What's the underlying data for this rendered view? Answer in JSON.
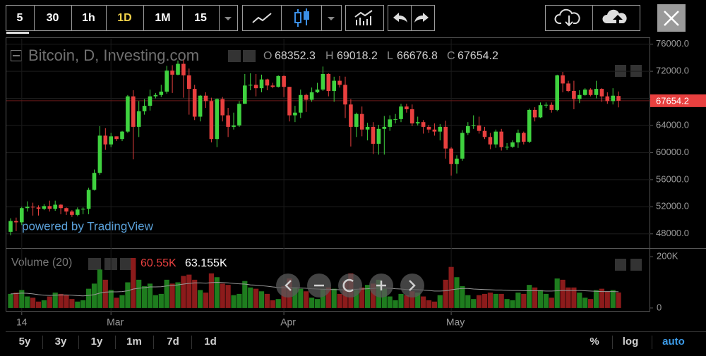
{
  "toolbar": {
    "intervals": [
      "5",
      "30",
      "1h",
      "1D",
      "1M",
      "15"
    ]
  },
  "chart_data": {
    "type": "candlestick",
    "title": "Bitcoin, D, Investing.com",
    "watermark": "powered by TradingView",
    "ohlc_labels": [
      "O",
      "H",
      "L",
      "C"
    ],
    "up_color": "#3fd23f",
    "down_color": "#e8403f",
    "categories": [
      null,
      null,
      "14",
      null,
      null,
      null,
      null,
      null,
      null,
      null,
      null,
      null,
      null,
      null,
      null,
      null,
      null,
      null,
      "Mar",
      null,
      null,
      null,
      null,
      null,
      null,
      null,
      null,
      null,
      null,
      null,
      null,
      null,
      null,
      null,
      null,
      null,
      null,
      null,
      null,
      null,
      null,
      null,
      null,
      null,
      null,
      null,
      null,
      null,
      null,
      "Apr",
      null,
      null,
      null,
      null,
      null,
      null,
      null,
      null,
      null,
      null,
      null,
      null,
      null,
      null,
      null,
      null,
      null,
      null,
      null,
      null,
      null,
      null,
      null,
      null,
      null,
      null,
      null,
      null,
      null,
      "May",
      null,
      null,
      null,
      null,
      null,
      null,
      null,
      null,
      null,
      null,
      null,
      null,
      null,
      null,
      null,
      null,
      null,
      null,
      null,
      null,
      null,
      null,
      null,
      null,
      null,
      null,
      null,
      null,
      null,
      null
    ],
    "open": [
      48300,
      49900,
      49700,
      51800,
      52000,
      51900,
      51700,
      52100,
      51700,
      52300,
      51800,
      51300,
      50800,
      51600,
      51700,
      54500,
      57000,
      62500,
      61200,
      62400,
      62000,
      63100,
      68300,
      63800,
      66100,
      66900,
      68300,
      68500,
      69000,
      72100,
      71500,
      73100,
      71400,
      69400,
      65300,
      68400,
      67600,
      62000,
      67900,
      65500,
      63800,
      64000,
      67200,
      69900,
      70000,
      69500,
      70800,
      69900,
      69700,
      71300,
      69700,
      65500,
      65900,
      68500,
      67800,
      68900,
      69300,
      71600,
      69100,
      70600,
      70000,
      67100,
      63800,
      65700,
      63400,
      63800,
      61300,
      63500,
      63800,
      64900,
      64950,
      66800,
      66400,
      64300,
      64500,
      63800,
      63400,
      63100,
      63800,
      60600,
      58300,
      59100,
      62900,
      63900,
      64000,
      63200,
      62300,
      61200,
      63100,
      60800,
      60850,
      61500,
      62900,
      61600,
      66300,
      65200,
      67000,
      67050,
      66300,
      71400,
      70200,
      69100,
      67900,
      68500,
      69300,
      68500,
      69400,
      68300,
      67600,
      68352.3
    ],
    "high": [
      50300,
      50400,
      52000,
      52800,
      52600,
      52200,
      52400,
      52900,
      52900,
      52400,
      51900,
      51500,
      51900,
      51900,
      54800,
      57500,
      63900,
      63600,
      62900,
      62400,
      63200,
      68500,
      69200,
      67600,
      67900,
      69300,
      68800,
      70000,
      72800,
      72900,
      73600,
      73700,
      72400,
      70000,
      68500,
      68900,
      68100,
      68000,
      68200,
      66600,
      65900,
      67600,
      71600,
      71700,
      71600,
      71500,
      70900,
      70300,
      71400,
      71400,
      69700,
      66900,
      69300,
      68700,
      69600,
      70300,
      72700,
      71700,
      71200,
      71300,
      71200,
      67900,
      65900,
      66800,
      64400,
      64500,
      64100,
      65400,
      65500,
      65700,
      67200,
      67200,
      67100,
      65300,
      64800,
      64100,
      64300,
      64200,
      64700,
      60800,
      59600,
      63300,
      64500,
      65500,
      65300,
      63800,
      62900,
      63400,
      63500,
      61400,
      61800,
      63400,
      63100,
      66500,
      66700,
      67400,
      67400,
      67400,
      71500,
      71900,
      70600,
      70600,
      69200,
      69500,
      69500,
      70600,
      69500,
      68900,
      69500,
      69018.2
    ],
    "low": [
      47800,
      48400,
      49300,
      51300,
      50700,
      50700,
      51500,
      51300,
      51400,
      50900,
      50800,
      50500,
      50600,
      50900,
      50900,
      54400,
      56700,
      60400,
      60800,
      61700,
      61700,
      62900,
      59000,
      62300,
      65600,
      66200,
      68000,
      68200,
      68700,
      68800,
      71400,
      68100,
      65600,
      64800,
      64600,
      66600,
      61500,
      60800,
      64600,
      62300,
      63400,
      63800,
      67200,
      69200,
      68300,
      68900,
      69200,
      69500,
      69600,
      68200,
      64600,
      64500,
      65100,
      66000,
      67500,
      68800,
      69100,
      68300,
      67500,
      69600,
      65100,
      60900,
      62300,
      62400,
      61800,
      59800,
      59700,
      59700,
      63200,
      64300,
      64500,
      65900,
      63900,
      64000,
      62800,
      62900,
      62500,
      61800,
      59100,
      56600,
      56900,
      58800,
      62600,
      63500,
      62800,
      62000,
      60500,
      60700,
      60300,
      60400,
      60700,
      60700,
      61200,
      61400,
      64600,
      65100,
      66600,
      65900,
      66100,
      68900,
      68900,
      66400,
      67300,
      68400,
      68300,
      68000,
      67500,
      67200,
      67100,
      66676.8
    ],
    "close": [
      49900,
      49700,
      51800,
      52000,
      51900,
      51700,
      52100,
      51700,
      52300,
      51800,
      51300,
      50800,
      51600,
      51700,
      54500,
      57000,
      62500,
      61200,
      62400,
      62000,
      63100,
      68300,
      63800,
      66100,
      66900,
      68300,
      68500,
      69000,
      72100,
      71500,
      73100,
      71400,
      69400,
      65300,
      68400,
      67600,
      62000,
      67900,
      65500,
      63800,
      64000,
      67200,
      69900,
      70000,
      69500,
      70800,
      69900,
      69700,
      71300,
      69700,
      65500,
      65900,
      68500,
      67800,
      68900,
      69300,
      71600,
      69100,
      70600,
      70000,
      67100,
      63800,
      65700,
      63400,
      63800,
      61300,
      63500,
      63800,
      64900,
      64950,
      66800,
      66400,
      64300,
      64500,
      63800,
      63400,
      63100,
      63800,
      60600,
      58300,
      59100,
      62900,
      63900,
      64000,
      63200,
      62300,
      61200,
      63100,
      60800,
      60850,
      61500,
      62900,
      61600,
      66300,
      65200,
      67000,
      67050,
      66300,
      71400,
      70200,
      69100,
      67900,
      68500,
      69300,
      68500,
      69400,
      68300,
      67600,
      68400,
      67654.2
    ],
    "ylim": [
      46100,
      76800
    ],
    "yticks": [
      {
        "value": 48000,
        "label": "48000.0"
      },
      {
        "value": 52000,
        "label": "52000.0"
      },
      {
        "value": 56000,
        "label": "56000.0"
      },
      {
        "value": 60000,
        "label": "60000.0"
      },
      {
        "value": 64000,
        "label": "64000.0"
      },
      {
        "value": 68000,
        "label": "68000.0"
      },
      {
        "value": 72000,
        "label": "72000.0"
      },
      {
        "value": 76000,
        "label": "76000.0"
      }
    ],
    "grid": true,
    "volume": {
      "title": "Volume (20)",
      "up_color": "#1e7d1e",
      "down_color": "#8c1b1b",
      "ma_color": "#9a9a9a",
      "values": [
        55000,
        60000,
        70000,
        45000,
        40000,
        25000,
        30000,
        45000,
        60000,
        55000,
        50000,
        35000,
        25000,
        30000,
        75000,
        95000,
        150000,
        110000,
        70000,
        40000,
        50000,
        100000,
        195000,
        110000,
        85000,
        95000,
        50000,
        55000,
        110000,
        95000,
        100000,
        125000,
        130000,
        110000,
        70000,
        60000,
        135000,
        120000,
        95000,
        90000,
        50000,
        55000,
        105000,
        80000,
        75000,
        65000,
        55000,
        30000,
        35000,
        85000,
        115000,
        80000,
        75000,
        65000,
        40000,
        35000,
        75000,
        80000,
        75000,
        55000,
        105000,
        135000,
        70000,
        80000,
        90000,
        95000,
        110000,
        75000,
        45000,
        30000,
        55000,
        50000,
        65000,
        60000,
        45000,
        30000,
        25000,
        50000,
        110000,
        160000,
        120000,
        85000,
        50000,
        35000,
        50000,
        55000,
        60000,
        55000,
        55000,
        35000,
        30000,
        60000,
        55000,
        90000,
        80000,
        70000,
        55000,
        40000,
        115000,
        110000,
        80000,
        80000,
        60000,
        40000,
        35000,
        70000,
        75000,
        65000,
        70000,
        60550
      ],
      "value_labels": [
        null,
        null,
        null,
        null,
        null,
        null,
        null,
        null,
        null,
        null,
        null,
        null,
        null,
        null,
        null,
        null,
        null,
        null,
        null,
        null,
        null,
        null,
        null,
        null,
        null,
        null,
        null,
        null,
        null,
        null,
        null,
        null,
        null,
        null,
        null,
        null,
        null,
        null,
        null,
        null,
        null,
        null,
        null,
        null,
        null,
        null,
        null,
        null,
        null,
        null,
        null,
        null,
        null,
        null,
        null,
        null,
        null,
        null,
        null,
        null,
        null,
        null,
        null,
        null,
        null,
        null,
        null,
        null,
        null,
        null,
        null,
        null,
        null,
        null,
        null,
        null,
        null,
        null,
        null,
        null,
        null,
        null,
        null,
        null,
        null,
        null,
        null,
        null,
        null,
        null,
        null,
        null,
        null,
        null,
        null,
        null,
        null,
        null,
        null,
        null,
        null,
        null,
        null,
        null,
        null,
        null,
        null,
        null,
        null,
        "60.55K"
      ],
      "ma_values": [
        55000,
        56000,
        58000,
        57000,
        55000,
        52000,
        50000,
        49000,
        50000,
        51000,
        51000,
        50000,
        48000,
        47000,
        49000,
        52000,
        58000,
        62000,
        63000,
        63000,
        64000,
        67000,
        74000,
        77000,
        79000,
        82000,
        82000,
        83000,
        86000,
        88000,
        90000,
        93000,
        96000,
        98000,
        98000,
        97000,
        99000,
        100000,
        99000,
        98000,
        96000,
        94000,
        93000,
        90000,
        89000,
        87000,
        85000,
        82000,
        80000,
        79000,
        79000,
        79000,
        78000,
        77000,
        75000,
        74000,
        73000,
        72000,
        72000,
        71000,
        71000,
        73000,
        73000,
        74000,
        75000,
        76000,
        78000,
        78000,
        77000,
        75000,
        74000,
        72000,
        72000,
        71000,
        70000,
        68000,
        66000,
        66000,
        67000,
        71000,
        74000,
        76000,
        76000,
        74000,
        73000,
        72000,
        71000,
        70000,
        70000,
        69000,
        68000,
        68000,
        67000,
        67000,
        67000,
        67000,
        66000,
        66000,
        67000,
        68000,
        68000,
        68000,
        68000,
        67000,
        66000,
        65000,
        64000,
        64000,
        64000,
        63155
      ],
      "ma_value_labels": [
        null,
        null,
        null,
        null,
        null,
        null,
        null,
        null,
        null,
        null,
        null,
        null,
        null,
        null,
        null,
        null,
        null,
        null,
        null,
        null,
        null,
        null,
        null,
        null,
        null,
        null,
        null,
        null,
        null,
        null,
        null,
        null,
        null,
        null,
        null,
        null,
        null,
        null,
        null,
        null,
        null,
        null,
        null,
        null,
        null,
        null,
        null,
        null,
        null,
        null,
        null,
        null,
        null,
        null,
        null,
        null,
        null,
        null,
        null,
        null,
        null,
        null,
        null,
        null,
        null,
        null,
        null,
        null,
        null,
        null,
        null,
        null,
        null,
        null,
        null,
        null,
        null,
        null,
        null,
        null,
        null,
        null,
        null,
        null,
        null,
        null,
        null,
        null,
        null,
        null,
        null,
        null,
        null,
        null,
        null,
        null,
        null,
        null,
        null,
        null,
        null,
        null,
        null,
        null,
        null,
        null,
        null,
        null,
        null,
        "63.155K"
      ],
      "ylim": [
        -14000,
        225000
      ],
      "yticks": [
        0,
        {
          "value": 200000,
          "label": "200K"
        }
      ]
    }
  },
  "range_bar": {
    "ranges": [
      "5y",
      "3y",
      "1y",
      "1m",
      "7d",
      "1d"
    ],
    "scales": [
      "%",
      "log",
      "auto"
    ]
  }
}
